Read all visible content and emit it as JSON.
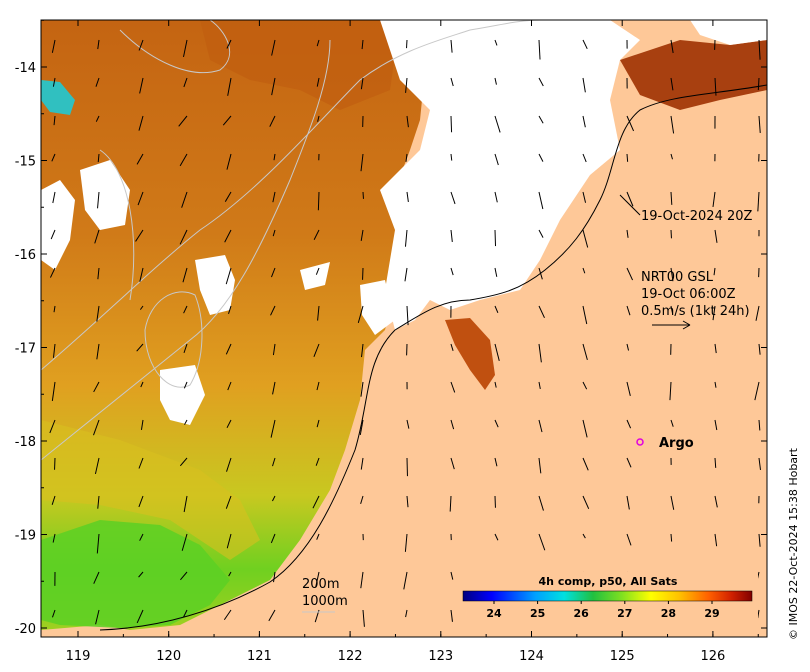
{
  "axes": {
    "lon_ticks": [
      "119",
      "120",
      "121",
      "122",
      "123",
      "124",
      "125",
      "126"
    ],
    "lat_ticks": [
      "-14",
      "-15",
      "-16",
      "-17",
      "-18",
      "-19",
      "-20"
    ]
  },
  "annotations": {
    "date_label": "19-Oct-2024 20Z",
    "current_title": "NRT00 GSL",
    "current_time": "19-Oct 06:00Z",
    "current_scale": "0.5m/s (1kt 24h)",
    "argo_label": "Argo",
    "contour_200": "200m",
    "contour_1000": "1000m"
  },
  "colorbar": {
    "title": "4h comp, p50, All Sats",
    "ticks": [
      "24",
      "25",
      "26",
      "27",
      "28",
      "29"
    ]
  },
  "credit": "© IMOS 22-Oct-2024 15:38 Hobart",
  "colors": {
    "land": "#fec898",
    "cloud": "#ffffff",
    "sst_warm": "#c06010",
    "sst_mid": "#e09a20",
    "sst_cool": "#60d020",
    "argo": "#e000e0"
  }
}
